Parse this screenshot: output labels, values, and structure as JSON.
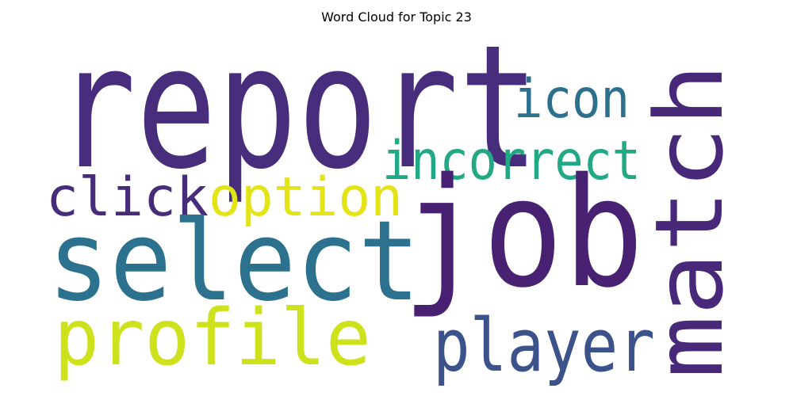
{
  "title": "Word Cloud for Topic 23",
  "words": [
    {
      "text": "report",
      "color": "#472d7b"
    },
    {
      "text": "job",
      "color": "#482173"
    },
    {
      "text": "match",
      "color": "#482878"
    },
    {
      "text": "select",
      "color": "#2c728e"
    },
    {
      "text": "profile",
      "color": "#cde11d"
    },
    {
      "text": "player",
      "color": "#3b528b"
    },
    {
      "text": "option",
      "color": "#e2e418"
    },
    {
      "text": "click",
      "color": "#472c7a"
    },
    {
      "text": "incorrect",
      "color": "#22a884"
    },
    {
      "text": "icon",
      "color": "#2d708e"
    }
  ]
}
